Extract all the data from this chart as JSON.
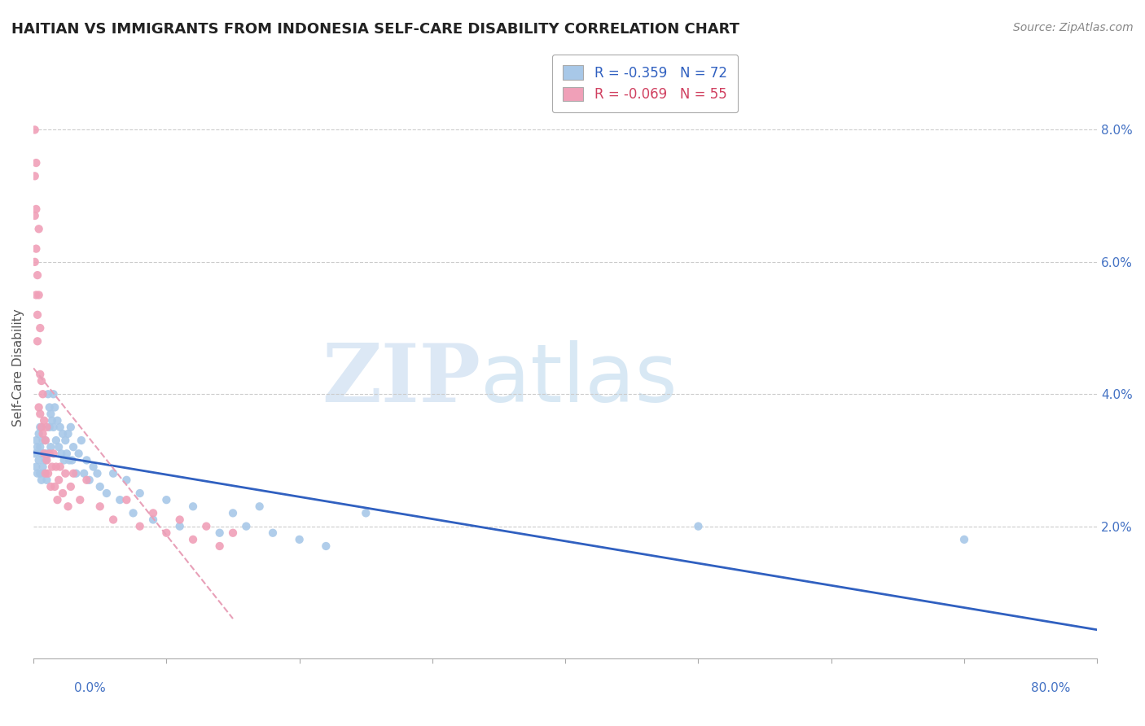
{
  "title": "HAITIAN VS IMMIGRANTS FROM INDONESIA SELF-CARE DISABILITY CORRELATION CHART",
  "source": "Source: ZipAtlas.com",
  "ylabel": "Self-Care Disability",
  "right_yticks": [
    "2.0%",
    "4.0%",
    "6.0%",
    "8.0%"
  ],
  "right_ytick_vals": [
    0.02,
    0.04,
    0.06,
    0.08
  ],
  "xmin": 0.0,
  "xmax": 0.8,
  "ymin": 0.0,
  "ymax": 0.088,
  "legend_haitians": "R = -0.359   N = 72",
  "legend_indonesia": "R = -0.069   N = 55",
  "haitians_color": "#a8c8e8",
  "indonesia_color": "#f0a0b8",
  "haitians_line_color": "#3060c0",
  "indonesia_line_color": "#e8a0b8",
  "haitians_x": [
    0.001,
    0.002,
    0.002,
    0.003,
    0.003,
    0.004,
    0.004,
    0.005,
    0.005,
    0.005,
    0.006,
    0.006,
    0.007,
    0.007,
    0.008,
    0.008,
    0.009,
    0.009,
    0.01,
    0.01,
    0.011,
    0.012,
    0.012,
    0.013,
    0.013,
    0.014,
    0.015,
    0.015,
    0.016,
    0.017,
    0.018,
    0.019,
    0.02,
    0.021,
    0.022,
    0.023,
    0.024,
    0.025,
    0.026,
    0.027,
    0.028,
    0.029,
    0.03,
    0.032,
    0.034,
    0.036,
    0.038,
    0.04,
    0.042,
    0.045,
    0.048,
    0.05,
    0.055,
    0.06,
    0.065,
    0.07,
    0.075,
    0.08,
    0.09,
    0.1,
    0.11,
    0.12,
    0.14,
    0.15,
    0.16,
    0.17,
    0.18,
    0.2,
    0.22,
    0.25,
    0.5,
    0.7
  ],
  "haitians_y": [
    0.031,
    0.029,
    0.033,
    0.028,
    0.032,
    0.03,
    0.034,
    0.028,
    0.032,
    0.035,
    0.027,
    0.031,
    0.029,
    0.033,
    0.028,
    0.031,
    0.03,
    0.033,
    0.027,
    0.031,
    0.04,
    0.038,
    0.035,
    0.037,
    0.032,
    0.036,
    0.04,
    0.035,
    0.038,
    0.033,
    0.036,
    0.032,
    0.035,
    0.031,
    0.034,
    0.03,
    0.033,
    0.031,
    0.034,
    0.03,
    0.035,
    0.03,
    0.032,
    0.028,
    0.031,
    0.033,
    0.028,
    0.03,
    0.027,
    0.029,
    0.028,
    0.026,
    0.025,
    0.028,
    0.024,
    0.027,
    0.022,
    0.025,
    0.021,
    0.024,
    0.02,
    0.023,
    0.019,
    0.022,
    0.02,
    0.023,
    0.019,
    0.018,
    0.017,
    0.022,
    0.02,
    0.018
  ],
  "indonesia_x": [
    0.001,
    0.001,
    0.001,
    0.001,
    0.002,
    0.002,
    0.002,
    0.002,
    0.003,
    0.003,
    0.003,
    0.004,
    0.004,
    0.004,
    0.005,
    0.005,
    0.005,
    0.006,
    0.006,
    0.007,
    0.007,
    0.008,
    0.008,
    0.009,
    0.009,
    0.01,
    0.01,
    0.011,
    0.012,
    0.013,
    0.014,
    0.015,
    0.016,
    0.017,
    0.018,
    0.019,
    0.02,
    0.022,
    0.024,
    0.026,
    0.028,
    0.03,
    0.035,
    0.04,
    0.05,
    0.06,
    0.07,
    0.08,
    0.09,
    0.1,
    0.11,
    0.12,
    0.13,
    0.14,
    0.15
  ],
  "indonesia_y": [
    0.08,
    0.073,
    0.067,
    0.06,
    0.075,
    0.068,
    0.062,
    0.055,
    0.058,
    0.052,
    0.048,
    0.065,
    0.055,
    0.038,
    0.05,
    0.043,
    0.037,
    0.042,
    0.035,
    0.04,
    0.034,
    0.036,
    0.031,
    0.033,
    0.028,
    0.03,
    0.035,
    0.028,
    0.031,
    0.026,
    0.029,
    0.031,
    0.026,
    0.029,
    0.024,
    0.027,
    0.029,
    0.025,
    0.028,
    0.023,
    0.026,
    0.028,
    0.024,
    0.027,
    0.023,
    0.021,
    0.024,
    0.02,
    0.022,
    0.019,
    0.021,
    0.018,
    0.02,
    0.017,
    0.019
  ]
}
